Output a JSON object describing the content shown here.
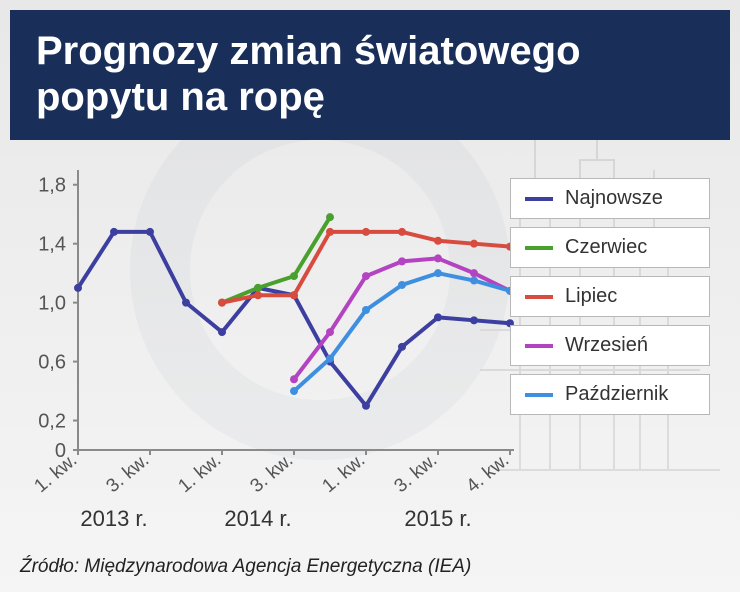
{
  "title": "Prognozy zmian światowego popytu na ropę",
  "source_label": "Źródło: Międzynarodowa Agencja Energetyczna (IEA)",
  "chart": {
    "type": "line",
    "background_color": "transparent",
    "title_bg": "#192e59",
    "title_color": "#ffffff",
    "title_fontsize": 40,
    "axis_fontsize": 20,
    "axis_color": "#8a8a8a",
    "tick_label_color": "#555555",
    "year_label_color": "#333333",
    "ylim": [
      0,
      1.9
    ],
    "yticks": [
      0,
      0.2,
      0.6,
      1.0,
      1.4,
      1.8
    ],
    "ytick_labels": [
      "0",
      "0,2",
      "0,6",
      "1,0",
      "1,4",
      "1,8"
    ],
    "x_categories": [
      "1. kw.",
      "3. kw.",
      "1. kw.",
      "3. kw.",
      "1. kw.",
      "3. kw.",
      "4. kw."
    ],
    "x_year_groups": [
      {
        "label": "2013 r.",
        "span": [
          0,
          1
        ]
      },
      {
        "label": "2014 r.",
        "span": [
          2,
          3
        ]
      },
      {
        "label": "2015 r.",
        "span": [
          4,
          6
        ]
      }
    ],
    "line_width": 4,
    "marker_radius": 4,
    "series": [
      {
        "name": "Najnowsze",
        "color": "#3d3fa0",
        "x": [
          0,
          0.5,
          1,
          1.5,
          2,
          2.5,
          3,
          3.5,
          4,
          4.5,
          5,
          5.5,
          6
        ],
        "y": [
          1.1,
          1.48,
          1.48,
          1.0,
          0.8,
          1.1,
          1.05,
          0.6,
          0.3,
          0.7,
          0.9,
          0.88,
          0.86
        ]
      },
      {
        "name": "Czerwiec",
        "color": "#49a02c",
        "x": [
          2,
          2.5,
          3,
          3.5
        ],
        "y": [
          1.0,
          1.1,
          1.18,
          1.58
        ]
      },
      {
        "name": "Lipiec",
        "color": "#d84b3f",
        "x": [
          2,
          2.5,
          3,
          3.5,
          4,
          4.5,
          5,
          5.5,
          6
        ],
        "y": [
          1.0,
          1.05,
          1.05,
          1.48,
          1.48,
          1.48,
          1.42,
          1.4,
          1.38
        ]
      },
      {
        "name": "Wrzesień",
        "color": "#b443c2",
        "x": [
          3,
          3.5,
          4,
          4.5,
          5,
          5.5,
          6
        ],
        "y": [
          0.48,
          0.8,
          1.18,
          1.28,
          1.3,
          1.2,
          1.08
        ]
      },
      {
        "name": "Październik",
        "color": "#3f8fe0",
        "x": [
          3,
          3.5,
          4,
          4.5,
          5,
          5.5,
          6
        ],
        "y": [
          0.4,
          0.62,
          0.95,
          1.12,
          1.2,
          1.15,
          1.08
        ]
      }
    ],
    "legend_bg": "#ffffff",
    "legend_border": "#b8b8b8",
    "legend_fontsize": 20
  }
}
